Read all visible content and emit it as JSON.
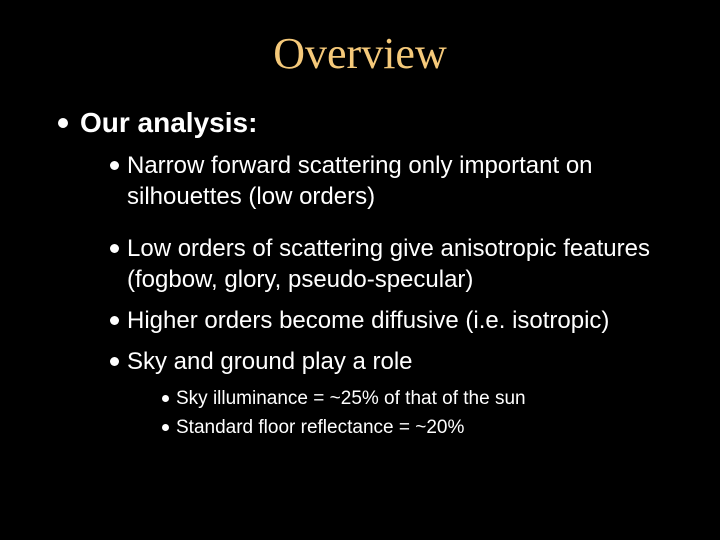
{
  "slide": {
    "title": "Overview",
    "title_color": "#f5c97a",
    "background_color": "#000000",
    "text_color": "#ffffff",
    "title_fontsize": 44,
    "lvl1_fontsize": 28,
    "lvl2_fontsize": 24,
    "lvl3_fontsize": 19,
    "content": {
      "heading": "Our analysis:",
      "points": [
        "Narrow forward scattering only important on silhouettes (low orders)",
        "Low orders of scattering give anisotropic features (fogbow, glory, pseudo-specular)",
        "Higher orders become diffusive (i.e. isotropic)",
        "Sky and ground play a role"
      ],
      "subpoints": [
        "Sky illuminance = ~25% of that of the sun",
        "Standard floor reflectance = ~20%"
      ]
    }
  }
}
